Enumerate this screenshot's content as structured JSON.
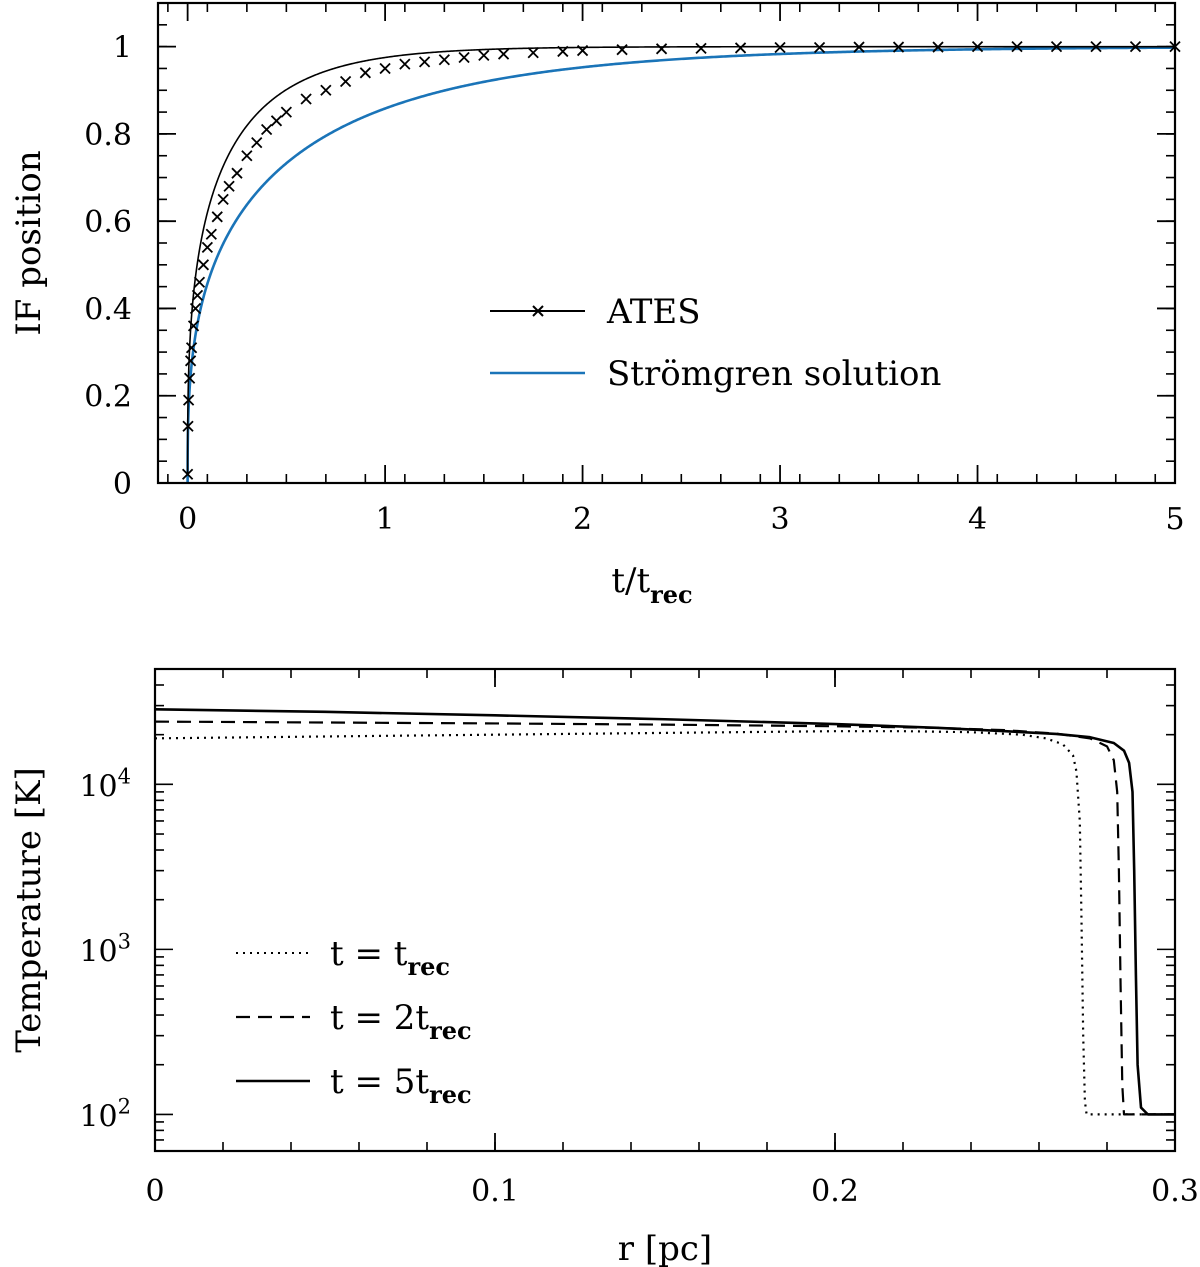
{
  "chart_data": [
    {
      "type": "line",
      "xlabel": "t/t",
      "xlabel_sub": "rec",
      "ylabel": "IF position",
      "xlim": [
        -0.15,
        5.0
      ],
      "ylim": [
        0,
        1.1
      ],
      "xticks": [
        0,
        1,
        2,
        3,
        4,
        5
      ],
      "xtick_labels": [
        "0",
        "1",
        "2",
        "3",
        "4",
        "5"
      ],
      "yticks": [
        0,
        0.2,
        0.4,
        0.6,
        0.8,
        1.0
      ],
      "ytick_labels": [
        "0",
        "0.2",
        "0.4",
        "0.6",
        "0.8",
        "1"
      ],
      "legend_location": "center-right",
      "series": [
        {
          "name": "ATES",
          "color": "#000000",
          "marker": "x",
          "model": "ates",
          "x": [
            0.0,
            0.002,
            0.005,
            0.01,
            0.015,
            0.02,
            0.03,
            0.04,
            0.05,
            0.06,
            0.08,
            0.1,
            0.12,
            0.15,
            0.18,
            0.21,
            0.25,
            0.3,
            0.35,
            0.4,
            0.45,
            0.5,
            0.6,
            0.7,
            0.8,
            0.9,
            1.0,
            1.1,
            1.2,
            1.3,
            1.4,
            1.5,
            1.6,
            1.75,
            1.9,
            2.0,
            2.2,
            2.4,
            2.6,
            2.8,
            3.0,
            3.2,
            3.4,
            3.6,
            3.8,
            4.0,
            4.2,
            4.4,
            4.6,
            4.8,
            5.0
          ],
          "y": [
            0.02,
            0.13,
            0.19,
            0.24,
            0.28,
            0.31,
            0.36,
            0.4,
            0.43,
            0.46,
            0.5,
            0.54,
            0.57,
            0.61,
            0.65,
            0.68,
            0.71,
            0.75,
            0.78,
            0.81,
            0.83,
            0.85,
            0.88,
            0.9,
            0.92,
            0.94,
            0.95,
            0.96,
            0.965,
            0.97,
            0.975,
            0.98,
            0.983,
            0.986,
            0.989,
            0.991,
            0.993,
            0.995,
            0.996,
            0.997,
            0.998,
            0.998,
            0.999,
            0.999,
            0.999,
            1.0,
            1.0,
            1.0,
            1.0,
            1.0,
            1.0
          ]
        },
        {
          "name": "Strömgren solution",
          "color": "#1a74b8",
          "marker": "none",
          "model": "stromgren",
          "x": [
            0,
            0.01,
            0.02,
            0.05,
            0.1,
            0.2,
            0.3,
            0.5,
            0.75,
            1.0,
            1.5,
            2.0,
            2.5,
            3.0,
            3.5,
            4.0,
            4.5,
            5.0
          ],
          "y": [
            0.0,
            0.21,
            0.27,
            0.36,
            0.45,
            0.56,
            0.63,
            0.73,
            0.8,
            0.86,
            0.92,
            0.96,
            0.98,
            0.99,
            0.995,
            0.997,
            0.998,
            0.999
          ]
        }
      ]
    },
    {
      "type": "line",
      "xlabel": "r [pc]",
      "ylabel": "Temperature [K]",
      "yscale": "log",
      "xlim": [
        0,
        0.3
      ],
      "ylim": [
        60,
        50000
      ],
      "xticks": [
        0,
        0.1,
        0.2,
        0.3
      ],
      "xtick_labels": [
        "0",
        "0.1",
        "0.2",
        "0.3"
      ],
      "yticks": [
        100,
        1000,
        10000
      ],
      "ytick_labels": [
        {
          "base": "10",
          "exp": "2"
        },
        {
          "base": "10",
          "exp": "3"
        },
        {
          "base": "10",
          "exp": "4"
        }
      ],
      "legend_location": "lower-left",
      "series": [
        {
          "name": "t = t",
          "name_sub": "rec",
          "style": "dotted",
          "color": "#000000",
          "x": [
            0,
            0.05,
            0.1,
            0.15,
            0.2,
            0.22,
            0.24,
            0.255,
            0.262,
            0.267,
            0.27,
            0.271,
            0.272,
            0.2725,
            0.273,
            0.2735,
            0.274,
            0.276,
            0.3
          ],
          "y": [
            19000,
            19500,
            20000,
            20500,
            21000,
            21000,
            20700,
            20000,
            19000,
            17500,
            15000,
            12000,
            6000,
            1500,
            300,
            120,
            100,
            100,
            100
          ]
        },
        {
          "name": "t = 2t",
          "name_sub": "rec",
          "style": "dashed",
          "color": "#000000",
          "x": [
            0,
            0.05,
            0.1,
            0.15,
            0.2,
            0.23,
            0.25,
            0.265,
            0.275,
            0.28,
            0.282,
            0.283,
            0.2835,
            0.284,
            0.2845,
            0.285,
            0.286,
            0.3
          ],
          "y": [
            24000,
            23700,
            23400,
            23000,
            22500,
            22000,
            21300,
            20300,
            19000,
            17000,
            14000,
            9000,
            3000,
            600,
            150,
            100,
            100,
            100
          ]
        },
        {
          "name": "t = 5t",
          "name_sub": "rec",
          "style": "solid",
          "color": "#000000",
          "x": [
            0,
            0.05,
            0.1,
            0.15,
            0.2,
            0.23,
            0.25,
            0.265,
            0.275,
            0.282,
            0.285,
            0.2865,
            0.2875,
            0.288,
            0.2885,
            0.289,
            0.29,
            0.292,
            0.3
          ],
          "y": [
            28500,
            27500,
            26200,
            24800,
            23200,
            22000,
            21000,
            20200,
            19300,
            17800,
            16000,
            13500,
            9000,
            3000,
            700,
            200,
            110,
            100,
            100
          ]
        }
      ]
    }
  ]
}
